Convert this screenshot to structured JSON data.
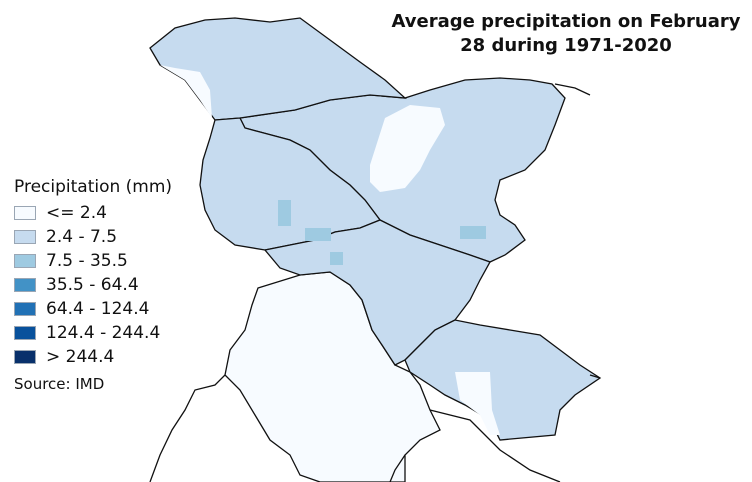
{
  "title_line1": "Average precipitation on February",
  "title_line2": "28 during 1971-2020",
  "legend": {
    "title": "Precipitation (mm)",
    "items": [
      {
        "label": "<= 2.4",
        "color": "#f7fbff"
      },
      {
        "label": "2.4 - 7.5",
        "color": "#c6dbef"
      },
      {
        "label": "7.5 - 35.5",
        "color": "#9ecae1"
      },
      {
        "label": "35.5 - 64.4",
        "color": "#4292c6"
      },
      {
        "label": "64.4 - 124.4",
        "color": "#2171b5"
      },
      {
        "label": "124.4 - 244.4",
        "color": "#08519c"
      },
      {
        "label": "> 244.4",
        "color": "#08306b"
      }
    ]
  },
  "source": "Source: IMD"
}
